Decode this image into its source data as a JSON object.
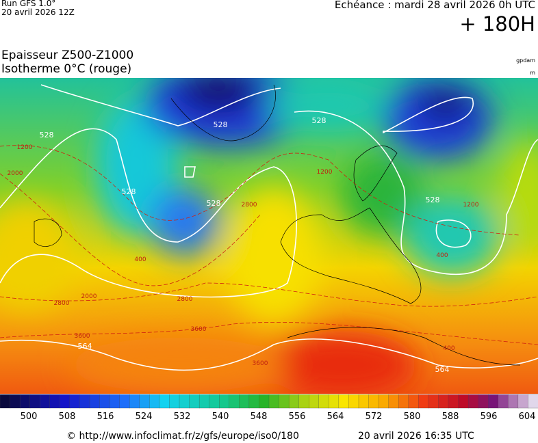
{
  "header": {
    "run": "Run GFS 1.0°",
    "run_date": "20 avril 2026 12Z",
    "echeance": "Echéance : mardi 28 avril 2026 0h UTC",
    "lead": "+ 180H",
    "title": "Epaisseur Z500-Z1000",
    "subtitle": "Isotherme 0°C (rouge)",
    "unit_thickness": "gpdam",
    "unit_iso": "m"
  },
  "map": {
    "contour_labels": [
      "528",
      "528",
      "528",
      "528",
      "528",
      "528",
      "564",
      "564",
      "1200",
      "1200",
      "1200",
      "2000",
      "2000",
      "2800",
      "2800",
      "2800",
      "3600",
      "3600",
      "3600",
      "400",
      "400",
      "400"
    ]
  },
  "colorbar": {
    "labels": [
      500,
      508,
      516,
      524,
      532,
      540,
      548,
      556,
      564,
      572,
      580,
      588,
      596,
      604
    ]
  },
  "footer": {
    "url": "© http://www.infoclimat.fr/z/gfs/europe/iso0/180",
    "timestamp": "20 avril 2026 16:35 UTC"
  }
}
